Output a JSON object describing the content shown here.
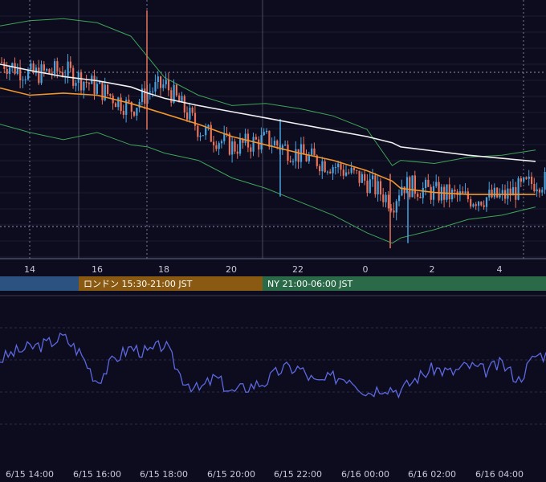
{
  "main_chart": {
    "x_ticks": [
      "14",
      "16",
      "18",
      "20",
      "22",
      "0",
      "2",
      "4"
    ],
    "bb_color": "#3fa357",
    "ma_fast_color": "#f0962a",
    "ma_slow_color": "#f0f0f0",
    "up_color": "#4aa3df",
    "down_color": "#e8735a"
  },
  "sessions": [
    {
      "label": "",
      "color": "#2c5282"
    },
    {
      "label": "ロンドン 15:30-21:00 JST",
      "color": "#8b5a12"
    },
    {
      "label": "NY 21:00-06:00 JST",
      "color": "#2a6a48"
    }
  ],
  "oscillator": {
    "line_color": "#5d68e0"
  },
  "bottom_axis": {
    "labels": [
      "6/15 14:00",
      "6/15 16:00",
      "6/15 18:00",
      "6/15 20:00",
      "6/15 22:00",
      "6/16 00:00",
      "6/16 02:00",
      "6/16 04:00"
    ]
  },
  "chart_data": [
    {
      "type": "candlestick",
      "x": [
        "6/15 13:00",
        "6/15 14:00",
        "6/15 15:00",
        "6/15 16:00",
        "6/15 17:00",
        "6/15 17:30",
        "6/15 18:00",
        "6/15 19:00",
        "6/15 20:00",
        "6/15 21:00",
        "6/15 22:00",
        "6/15 23:00",
        "6/16 00:00",
        "6/16 00:45",
        "6/16 01:00",
        "6/16 02:00",
        "6/16 03:00",
        "6/16 04:00",
        "6/16 05:00"
      ],
      "close": [
        0.72,
        0.58,
        0.62,
        0.45,
        0.25,
        0.42,
        0.48,
        0.05,
        -0.12,
        -0.05,
        -0.2,
        -0.3,
        -0.46,
        -0.66,
        -0.48,
        -0.56,
        -0.62,
        -0.6,
        -0.45
      ],
      "series": [
        {
          "name": "BB",
          "upper": [
            1.05,
            1.1,
            1.12,
            1.08,
            0.95,
            0.75,
            0.55,
            0.38,
            0.28,
            0.3,
            0.25,
            0.18,
            0.05,
            -0.3,
            -0.25,
            -0.28,
            -0.22,
            -0.2,
            -0.15
          ],
          "lower": [
            0.1,
            0.02,
            -0.05,
            0.02,
            -0.1,
            -0.12,
            -0.18,
            -0.25,
            -0.42,
            -0.52,
            -0.65,
            -0.78,
            -0.95,
            -1.05,
            -1.0,
            -0.92,
            -0.82,
            -0.78,
            -0.7
          ]
        },
        {
          "name": "MA fast",
          "values": [
            0.45,
            0.38,
            0.4,
            0.38,
            0.3,
            0.25,
            0.2,
            0.1,
            -0.02,
            -0.1,
            -0.18,
            -0.25,
            -0.35,
            -0.45,
            -0.52,
            -0.56,
            -0.58,
            -0.58,
            -0.58
          ]
        },
        {
          "name": "MA slow",
          "values": [
            0.68,
            0.62,
            0.56,
            0.52,
            0.46,
            0.4,
            0.35,
            0.28,
            0.22,
            0.16,
            0.1,
            0.04,
            -0.02,
            -0.08,
            -0.12,
            -0.16,
            -0.2,
            -0.23,
            -0.26
          ]
        }
      ]
    },
    {
      "type": "line",
      "x": [
        "6/15 13:00",
        "6/15 13:30",
        "6/15 14:00",
        "6/15 14:30",
        "6/15 15:00",
        "6/15 15:30",
        "6/15 16:00",
        "6/15 16:30",
        "6/15 17:00",
        "6/15 17:30",
        "6/15 18:00",
        "6/15 18:30",
        "6/15 19:00",
        "6/15 19:30",
        "6/15 20:00",
        "6/15 20:30",
        "6/15 21:00",
        "6/15 21:30",
        "6/15 22:00",
        "6/15 22:30",
        "6/15 23:00",
        "6/15 23:30",
        "6/16 00:00",
        "6/16 00:30",
        "6/16 01:00",
        "6/16 01:30",
        "6/16 02:00",
        "6/16 02:30",
        "6/16 03:00",
        "6/16 03:30",
        "6/16 04:00",
        "6/16 04:30",
        "6/16 05:00"
      ],
      "values": [
        62,
        72,
        78,
        82,
        90,
        72,
        40,
        65,
        78,
        72,
        82,
        45,
        30,
        45,
        28,
        35,
        40,
        55,
        55,
        38,
        45,
        45,
        28,
        35,
        30,
        45,
        55,
        50,
        58,
        52,
        60,
        42,
        70
      ],
      "ylim": [
        0,
        100
      ]
    }
  ]
}
